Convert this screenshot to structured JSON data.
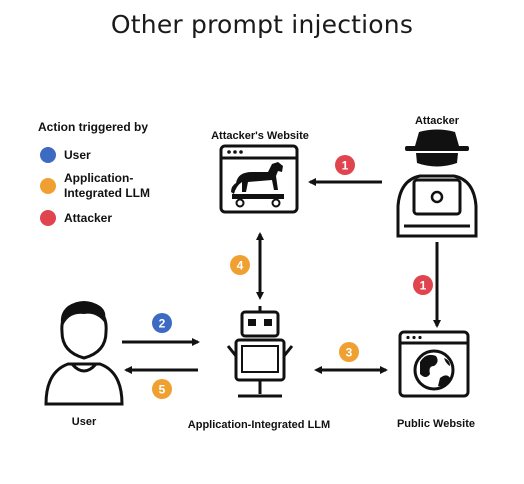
{
  "title": "Other prompt injections",
  "colors": {
    "user": "#3d6bc4",
    "llm": "#f0a030",
    "attacker": "#e0444e",
    "ink": "#111111"
  },
  "legend": {
    "heading": "Action triggered by",
    "items": [
      {
        "label": "User",
        "color": "#3d6bc4"
      },
      {
        "label": "Application-",
        "label2": "Integrated LLM",
        "color": "#f0a030"
      },
      {
        "label": "Attacker",
        "color": "#e0444e"
      }
    ]
  },
  "nodes": {
    "attacker_website": {
      "label": "Attacker's Website",
      "icon": "trojan-horse-browser-icon"
    },
    "attacker": {
      "label": "Attacker",
      "icon": "hacker-laptop-icon"
    },
    "user": {
      "label": "User",
      "icon": "user-person-icon"
    },
    "llm": {
      "label": "Application-Integrated LLM",
      "icon": "robot-computer-icon"
    },
    "public_website": {
      "label": "Public Website",
      "icon": "globe-browser-icon"
    }
  },
  "steps": [
    {
      "number": "1",
      "color": "#e0444e",
      "id": "attacker-to-attacker-website"
    },
    {
      "number": "1",
      "color": "#e0444e",
      "id": "attacker-to-public-website"
    },
    {
      "number": "2",
      "color": "#3d6bc4",
      "id": "user-to-llm"
    },
    {
      "number": "3",
      "color": "#f0a030",
      "id": "llm-public-website"
    },
    {
      "number": "4",
      "color": "#f0a030",
      "id": "llm-attacker-website"
    },
    {
      "number": "5",
      "color": "#f0a030",
      "id": "llm-to-user"
    }
  ]
}
